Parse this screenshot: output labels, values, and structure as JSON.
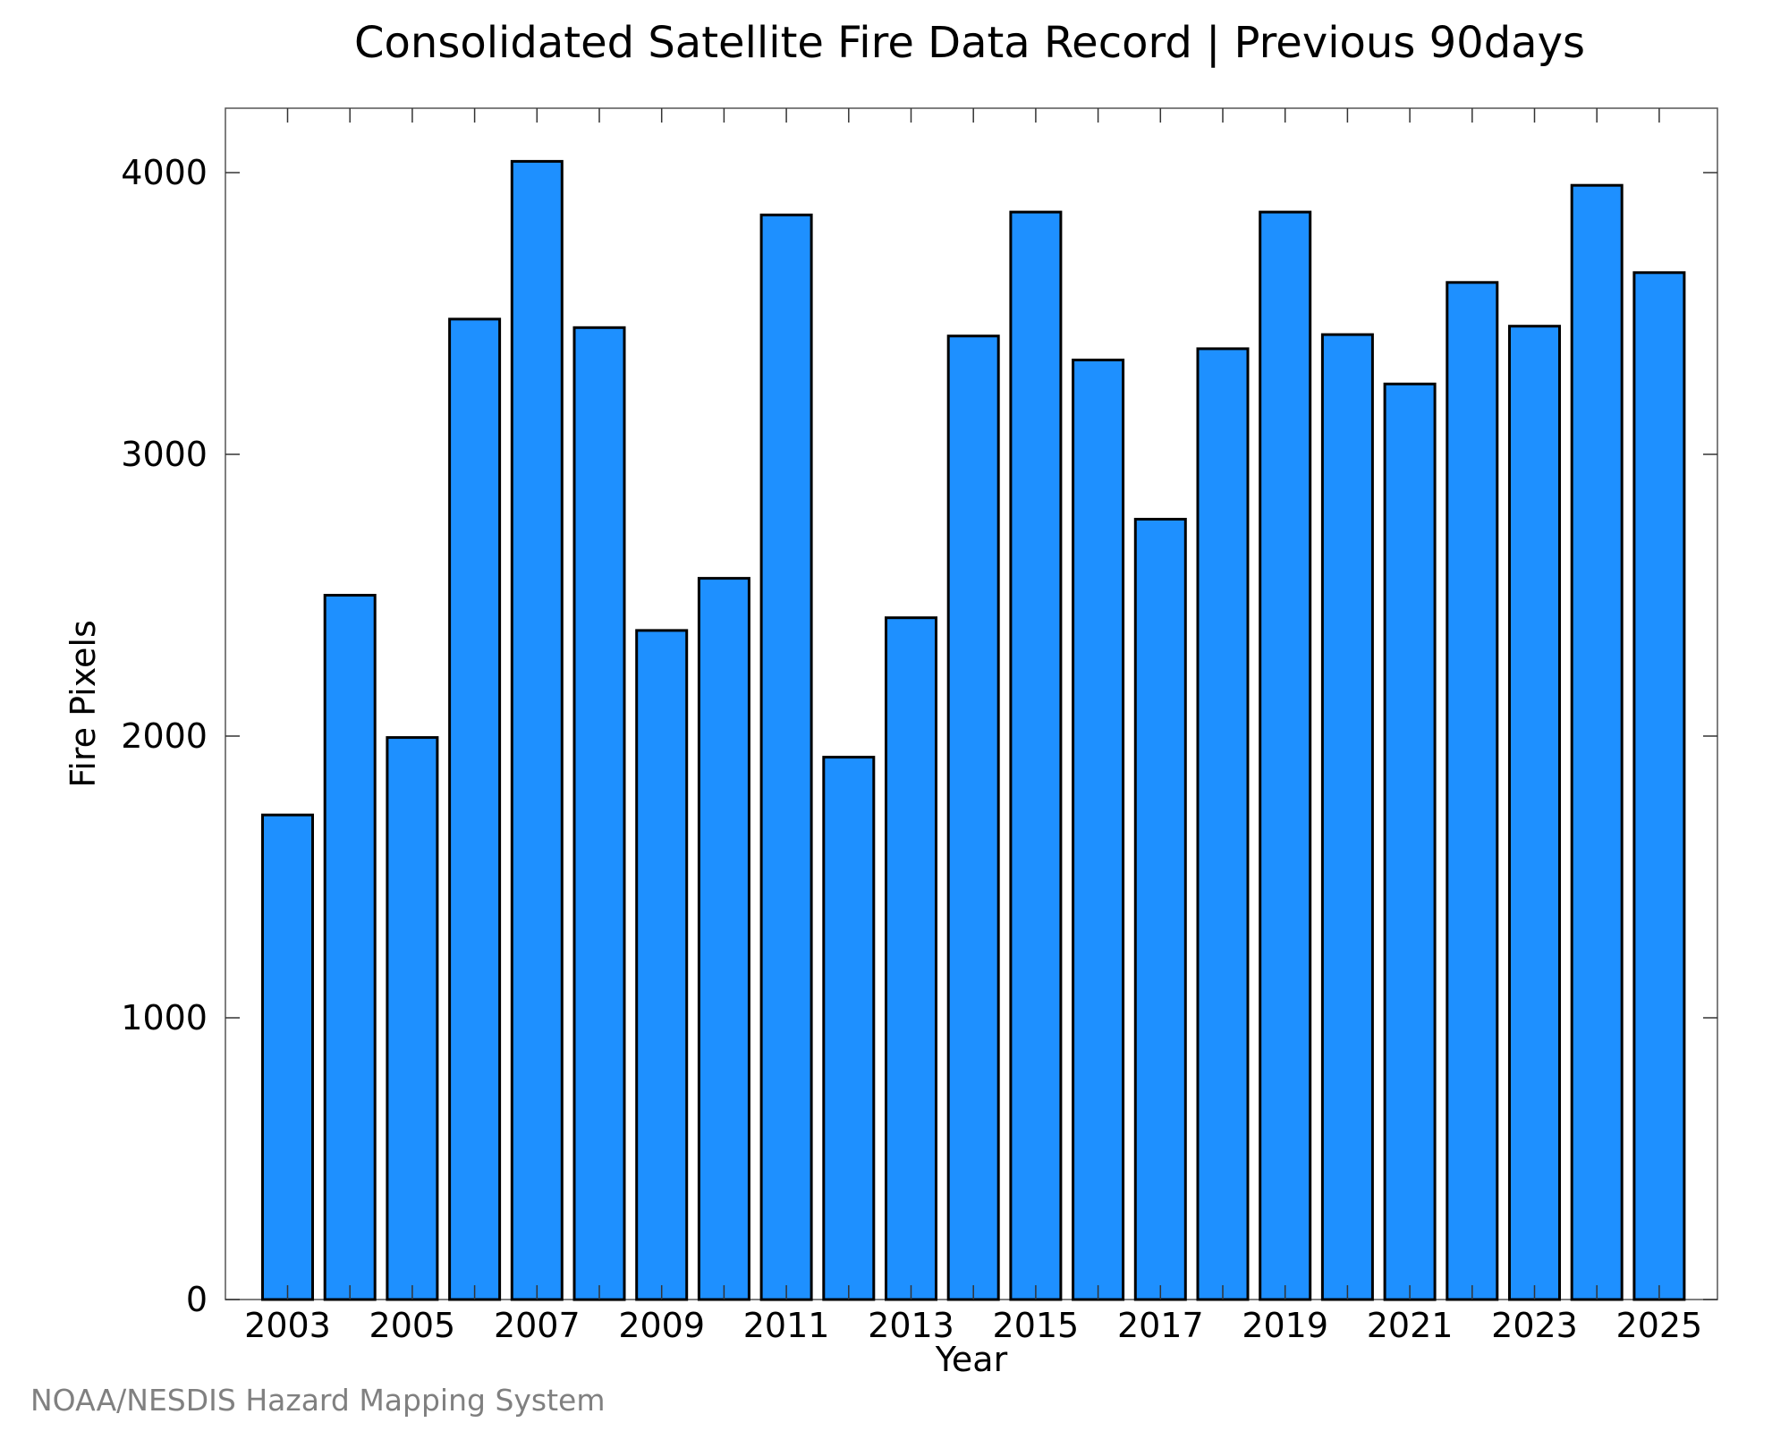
{
  "chart_data": {
    "type": "bar",
    "title": "Consolidated Satellite Fire Data Record | Previous 90days",
    "xlabel": "Year",
    "ylabel": "Fire Pixels",
    "categories": [
      "2003",
      "2004",
      "2005",
      "2006",
      "2007",
      "2008",
      "2009",
      "2010",
      "2011",
      "2012",
      "2013",
      "2014",
      "2015",
      "2016",
      "2017",
      "2018",
      "2019",
      "2020",
      "2021",
      "2022",
      "2023",
      "2024",
      "2025"
    ],
    "values": [
      1720,
      2500,
      1995,
      3480,
      4040,
      3450,
      2375,
      2560,
      3850,
      1925,
      2420,
      3420,
      3860,
      3335,
      2770,
      3375,
      3860,
      3425,
      3250,
      3610,
      3455,
      3955,
      3645
    ],
    "x_tick_labels": [
      "2003",
      "2005",
      "2007",
      "2009",
      "2011",
      "2013",
      "2015",
      "2017",
      "2019",
      "2021",
      "2023",
      "2025"
    ],
    "y_tick_labels": [
      "0",
      "1000",
      "2000",
      "3000",
      "4000"
    ],
    "ylim": [
      0,
      4230
    ],
    "bar_color": "#1e90ff",
    "grid": false,
    "legend": "none"
  },
  "credit": "NOAA/NESDIS Hazard Mapping System"
}
